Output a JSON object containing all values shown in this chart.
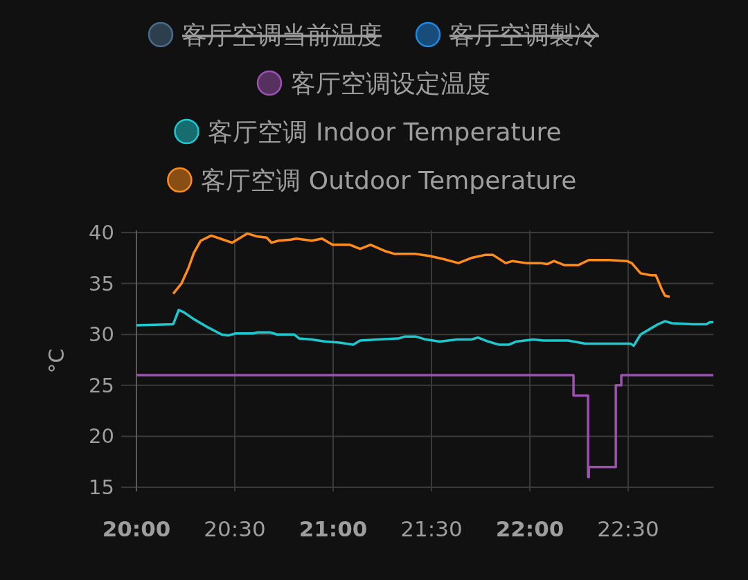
{
  "chart_data": {
    "type": "line",
    "ylabel": "°C",
    "legend": "top",
    "grid": true,
    "marker": "none",
    "line_style": "solid",
    "xlim": [
      20,
      22.933
    ],
    "xticks": [
      {
        "value": 20,
        "label": "20:00"
      },
      {
        "value": 20.5,
        "label": "20:30"
      },
      {
        "value": 21,
        "label": "21:00"
      },
      {
        "value": 21.5,
        "label": "21:30"
      },
      {
        "value": 22,
        "label": "22:00"
      },
      {
        "value": 22.5,
        "label": "22:30"
      }
    ],
    "ylim": [
      14.6,
      40.2
    ],
    "yticks": [
      15,
      20,
      25,
      30,
      35,
      40
    ],
    "series": [
      {
        "name": "客厅空调当前温度",
        "color": "#4a6b8a"
      },
      {
        "name": "客厅空调製冷",
        "color": "#1e88e5"
      },
      {
        "name": "客厅空调设定温度",
        "color": "#9c52b0",
        "type": "step",
        "x": [
          20.0,
          22.222,
          22.296,
          22.3,
          22.437,
          22.465,
          22.933
        ],
        "values": [
          26,
          24,
          16,
          17,
          25,
          26,
          26
        ]
      },
      {
        "name": "客厅空调 Indoor Temperature",
        "color": "#1ec8cf",
        "x": [
          20.0,
          20.187,
          20.215,
          20.239,
          20.292,
          20.363,
          20.433,
          20.468,
          20.504,
          20.592,
          20.616,
          20.68,
          20.715,
          20.803,
          20.827,
          20.891,
          20.961,
          21.032,
          21.102,
          21.137,
          21.225,
          21.331,
          21.366,
          21.419,
          21.472,
          21.542,
          21.63,
          21.701,
          21.736,
          21.789,
          21.842,
          21.894,
          21.93,
          22.018,
          22.07,
          22.194,
          22.282,
          22.511,
          22.528,
          22.563,
          22.616,
          22.651,
          22.687,
          22.722,
          22.827,
          22.898,
          22.915,
          22.933
        ],
        "values": [
          30.9,
          31.0,
          32.4,
          32.2,
          31.5,
          30.7,
          30.0,
          29.9,
          30.1,
          30.1,
          30.2,
          30.2,
          30.0,
          30.0,
          29.6,
          29.5,
          29.3,
          29.2,
          29.0,
          29.4,
          29.5,
          29.6,
          29.8,
          29.8,
          29.5,
          29.3,
          29.5,
          29.5,
          29.7,
          29.3,
          29.0,
          29.0,
          29.3,
          29.5,
          29.4,
          29.4,
          29.1,
          29.1,
          28.9,
          30.0,
          30.6,
          31.0,
          31.3,
          31.1,
          31.0,
          31.0,
          31.2,
          31.2
        ]
      },
      {
        "name": "客厅空调 Outdoor Temperature",
        "color": "#ff8c1a",
        "x": [
          20.187,
          20.229,
          20.264,
          20.292,
          20.327,
          20.38,
          20.426,
          20.486,
          20.521,
          20.563,
          20.616,
          20.662,
          20.687,
          20.722,
          20.785,
          20.813,
          20.891,
          20.944,
          20.996,
          21.085,
          21.137,
          21.19,
          21.261,
          21.313,
          21.419,
          21.489,
          21.56,
          21.637,
          21.701,
          21.771,
          21.813,
          21.877,
          21.912,
          21.982,
          22.053,
          22.088,
          22.123,
          22.176,
          22.246,
          22.299,
          22.405,
          22.493,
          22.518,
          22.563,
          22.616,
          22.641,
          22.669,
          22.687,
          22.711
        ],
        "values": [
          34.0,
          35.0,
          36.5,
          38.0,
          39.2,
          39.7,
          39.4,
          39.0,
          39.4,
          39.9,
          39.6,
          39.5,
          39.0,
          39.2,
          39.3,
          39.4,
          39.2,
          39.4,
          38.8,
          38.8,
          38.4,
          38.8,
          38.2,
          37.9,
          37.9,
          37.7,
          37.4,
          37.0,
          37.5,
          37.8,
          37.8,
          37.0,
          37.2,
          37.0,
          37.0,
          36.9,
          37.2,
          36.8,
          36.8,
          37.3,
          37.3,
          37.2,
          37.0,
          36.0,
          35.8,
          35.8,
          34.5,
          33.8,
          33.7
        ]
      }
    ]
  }
}
